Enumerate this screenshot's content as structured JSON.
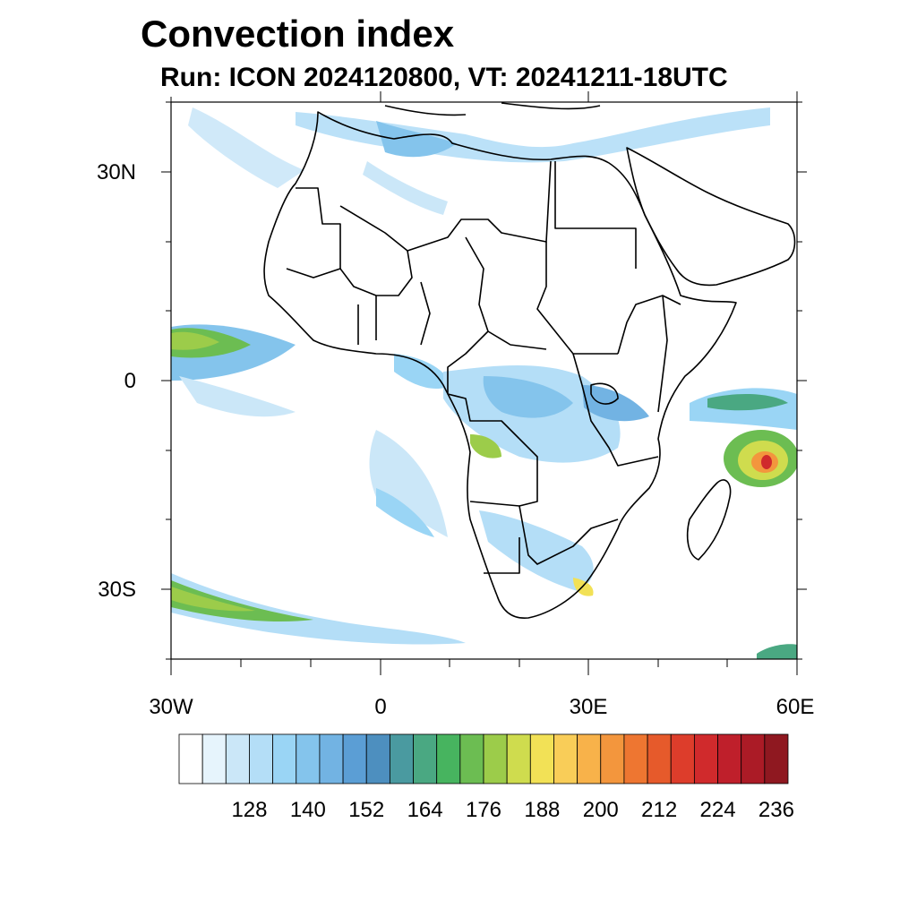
{
  "title": "Convection index",
  "subtitle": "Run: ICON 2024120800,  VT: 20241211-18UTC",
  "axes": {
    "lat_ticks": [
      "30N",
      "0",
      "30S"
    ],
    "lon_ticks": [
      "30W",
      "0",
      "30E",
      "60E"
    ]
  },
  "colorbar": {
    "colors": [
      "#ffffff",
      "#e6f4fc",
      "#cbe7f8",
      "#b4def7",
      "#9ad5f5",
      "#84c4ec",
      "#72b3e3",
      "#5b9ed5",
      "#4d8fbf",
      "#4a9aa0",
      "#4aa882",
      "#47b45f",
      "#6cbd52",
      "#9ccc4a",
      "#cfdc4e",
      "#f2e156",
      "#f9cd58",
      "#f8b24a",
      "#f3963d",
      "#ee7631",
      "#e65a2b",
      "#dd3d2b",
      "#d02a2c",
      "#bf1f2b",
      "#ab1b26",
      "#8f1820"
    ],
    "tick_labels": [
      "128",
      "140",
      "152",
      "164",
      "176",
      "188",
      "200",
      "212",
      "224",
      "236"
    ]
  }
}
